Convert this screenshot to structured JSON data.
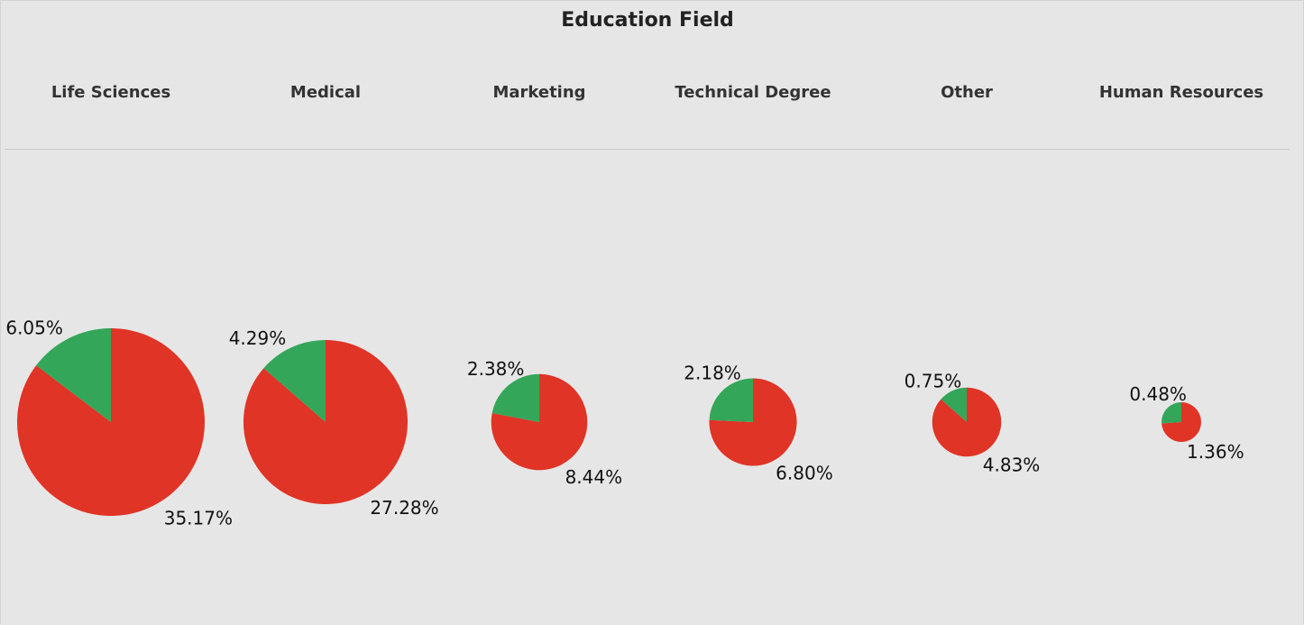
{
  "chart_data": {
    "type": "pie",
    "title": "Education Field",
    "colors": {
      "green": "#34a65a",
      "red": "#e03426"
    },
    "categories": [
      {
        "name": "Life Sciences",
        "green": 6.05,
        "red": 35.17,
        "green_label": "6.05%",
        "red_label": "35.17%"
      },
      {
        "name": "Medical",
        "green": 4.29,
        "red": 27.28,
        "green_label": "4.29%",
        "red_label": "27.28%"
      },
      {
        "name": "Marketing",
        "green": 2.38,
        "red": 8.44,
        "green_label": "2.38%",
        "red_label": "8.44%"
      },
      {
        "name": "Technical Degree",
        "green": 2.18,
        "red": 6.8,
        "green_label": "2.18%",
        "red_label": "6.80%"
      },
      {
        "name": "Other",
        "green": 0.75,
        "red": 4.83,
        "green_label": "0.75%",
        "red_label": "4.83%"
      },
      {
        "name": "Human Resources",
        "green": 0.48,
        "red": 1.36,
        "green_label": "0.48%",
        "red_label": "1.36%"
      }
    ]
  }
}
